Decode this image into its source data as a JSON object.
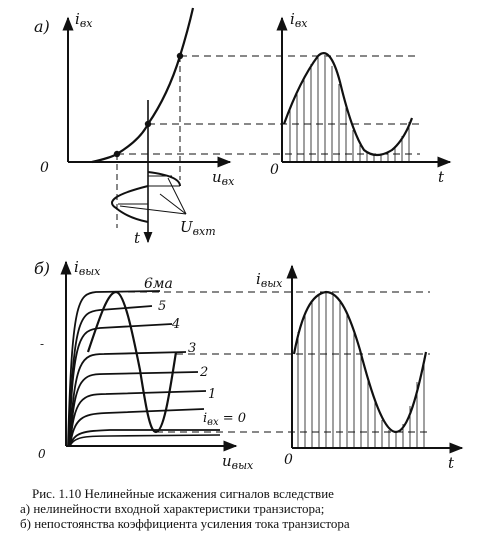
{
  "panel_a": {
    "label": "а)",
    "input_char": {
      "y_axis": "i_вх",
      "x_axis": "u_вх",
      "origin": "0",
      "time_axis": "t",
      "amp_label": "U_вхm"
    },
    "waveform": {
      "y_axis": "i_вх",
      "x_axis": "t",
      "origin": "0"
    }
  },
  "panel_b": {
    "label": "б)",
    "output_char": {
      "y_axis": "i_вых",
      "x_axis": "u_вых",
      "origin": "0",
      "curves": [
        "6ма",
        "5",
        "4",
        "3",
        "2",
        "1",
        "i_вх = 0"
      ]
    },
    "waveform": {
      "y_axis": "i_вых",
      "x_axis": "t",
      "origin": "0"
    }
  },
  "caption": {
    "line1": "Рис. 1.10 Нелинейные искажения сигналов вследствие",
    "line2": "а) нелинейности входной характеристики транзистора;",
    "line3": "б) непостоянства коэффициента усиления тока транзистора"
  },
  "colors": {
    "ink": "#111111",
    "paper": "#ffffff"
  }
}
